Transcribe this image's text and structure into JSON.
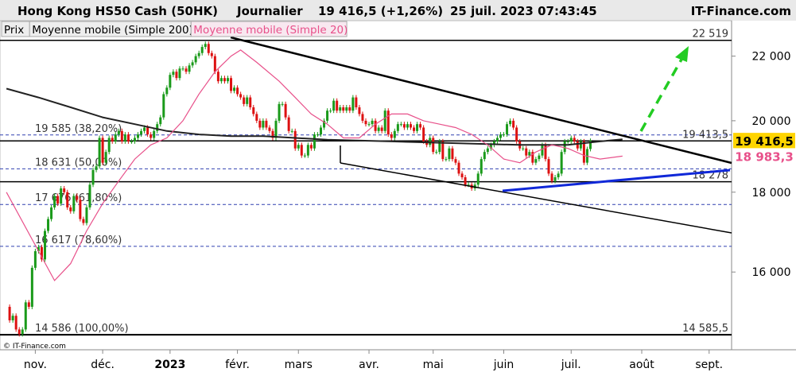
{
  "chart_data": {
    "type": "candlestick",
    "header": {
      "title": "Hong Kong HS50 Cash (50HK)",
      "period": "Journalier",
      "quote": "19 416,5 (+1,26%)",
      "datetime": "25 juil. 2023 07:43:45",
      "brand": "IT-Finance.com"
    },
    "copyright": "© IT-Finance.com",
    "log_scale": true,
    "xlim": [
      -2,
      226
    ],
    "ylim": [
      14300,
      23100
    ],
    "xticks": [
      {
        "value": 9,
        "label": "nov."
      },
      {
        "value": 30,
        "label": "déc."
      },
      {
        "value": 51,
        "label": "2023"
      },
      {
        "value": 72,
        "label": "févr."
      },
      {
        "value": 91,
        "label": "mars"
      },
      {
        "value": 113,
        "label": "avr."
      },
      {
        "value": 133,
        "label": "mai"
      },
      {
        "value": 155,
        "label": "juin"
      },
      {
        "value": 176,
        "label": "juil."
      },
      {
        "value": 198,
        "label": "août"
      },
      {
        "value": 219,
        "label": "sept."
      }
    ],
    "yticks": [
      {
        "value": 16000,
        "label": "16 000"
      },
      {
        "value": 18000,
        "label": "18 000"
      },
      {
        "value": 20000,
        "label": "20 000"
      },
      {
        "value": 22000,
        "label": "22 000"
      }
    ],
    "series": [
      {
        "name": "Prix",
        "up_color": "#1a9a1a",
        "down_color": "#d11",
        "values": [
          15200,
          14900,
          15000,
          14700,
          14600,
          14700,
          15300,
          15200,
          16100,
          16500,
          16600,
          16300,
          17000,
          17300,
          17600,
          17900,
          17700,
          18100,
          18000,
          17600,
          17500,
          17900,
          17800,
          17300,
          17200,
          17600,
          18200,
          18600,
          18700,
          19500,
          18800,
          19100,
          19500,
          19400,
          19600,
          19700,
          19400,
          19600,
          19400,
          19400,
          19500,
          19600,
          19700,
          19800,
          19600,
          19500,
          19700,
          19900,
          20100,
          20800,
          21000,
          21400,
          21500,
          21300,
          21600,
          21600,
          21500,
          21700,
          21800,
          22000,
          22100,
          22300,
          22400,
          22100,
          22000,
          21500,
          21200,
          21300,
          21200,
          21300,
          20900,
          21000,
          20800,
          20700,
          20500,
          20700,
          20400,
          20200,
          20000,
          19800,
          20000,
          19800,
          19700,
          19500,
          20000,
          20500,
          20500,
          20100,
          19700,
          19700,
          19200,
          19300,
          19000,
          19000,
          19300,
          19200,
          19600,
          19600,
          19800,
          20000,
          20300,
          20300,
          20600,
          20300,
          20400,
          20300,
          20400,
          20300,
          20700,
          20400,
          20200,
          20000,
          19900,
          19900,
          20000,
          19700,
          19800,
          19700,
          20300,
          19600,
          19500,
          19700,
          19900,
          19900,
          19800,
          19900,
          19800,
          19700,
          19900,
          19800,
          19400,
          19300,
          19500,
          19100,
          19100,
          19400,
          18900,
          18900,
          19200,
          18900,
          18800,
          18500,
          18400,
          18200,
          18200,
          18100,
          18200,
          18500,
          18900,
          19100,
          19200,
          19300,
          19400,
          19500,
          19600,
          19600,
          19900,
          20000,
          19800,
          19400,
          19200,
          19200,
          19000,
          19100,
          18800,
          18900,
          19000,
          19300,
          18900,
          18500,
          18300,
          18400,
          18500,
          19100,
          19400,
          19400,
          19500,
          19400,
          19200,
          19400,
          18800,
          19183,
          19416.5
        ]
      },
      {
        "name": "Moyenne mobile (Simple 200)",
        "color": "#222222",
        "x": [
          0,
          10,
          20,
          30,
          40,
          50,
          60,
          70,
          80,
          90,
          100,
          120,
          140,
          160,
          175,
          185,
          192
        ],
        "values": [
          20970,
          20700,
          20400,
          20100,
          19900,
          19700,
          19600,
          19550,
          19550,
          19500,
          19450,
          19400,
          19350,
          19300,
          19300,
          19400,
          19460
        ]
      },
      {
        "name": "Moyenne mobile (Simple 20)",
        "color": "#e8508a",
        "x": [
          0,
          15,
          20,
          25,
          30,
          35,
          40,
          45,
          50,
          55,
          60,
          65,
          70,
          73,
          78,
          85,
          90,
          95,
          100,
          105,
          110,
          115,
          120,
          125,
          130,
          135,
          140,
          145,
          150,
          155,
          160,
          165,
          170,
          175,
          180,
          185,
          192
        ],
        "values": [
          18000,
          15800,
          16200,
          17000,
          17700,
          18300,
          18900,
          19300,
          19500,
          20000,
          20800,
          21500,
          22000,
          22200,
          21800,
          21200,
          20700,
          20200,
          19900,
          19500,
          19500,
          19900,
          20200,
          20200,
          20000,
          19900,
          19800,
          19600,
          19300,
          18900,
          18800,
          19100,
          19300,
          19200,
          19000,
          18900,
          18983.3
        ]
      }
    ],
    "fib_levels": [
      {
        "value": 19585,
        "label": "19 585 (38,20%)"
      },
      {
        "value": 18631,
        "label": "18 631 (50,00%)"
      },
      {
        "value": 17676,
        "label": "17 676 (61,80%)"
      },
      {
        "value": 16617,
        "label": "16 617 (78,60%)"
      },
      {
        "value": 14586,
        "label": "14 586 (100,00%)"
      }
    ],
    "price_labels": [
      {
        "value": 22519,
        "label": "22 519"
      },
      {
        "value": 19413.5,
        "label": "19 413,5"
      },
      {
        "value": 18278,
        "label": "18 278"
      },
      {
        "value": 14585.5,
        "label": "14 585,5"
      }
    ],
    "last_labels": [
      {
        "value": 19416.5,
        "label": "19 416,5",
        "color": "#ffd400"
      },
      {
        "value": 18983.3,
        "label": "18 983,3",
        "color": "#e8508a"
      }
    ]
  }
}
